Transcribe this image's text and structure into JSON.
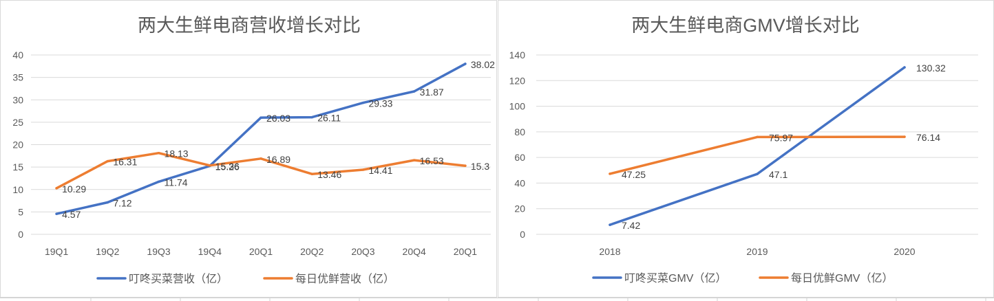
{
  "chart_data": [
    {
      "type": "line",
      "title": "两大生鲜电商营收增长对比",
      "categories": [
        "19Q1",
        "19Q2",
        "19Q3",
        "19Q4",
        "20Q1",
        "20Q2",
        "20Q3",
        "20Q4",
        "20Q1"
      ],
      "series": [
        {
          "name": "叮咚买菜营收（亿）",
          "color": "#4472C4",
          "values": [
            4.57,
            7.12,
            11.74,
            15.26,
            26.03,
            26.11,
            29.33,
            31.87,
            38.02
          ]
        },
        {
          "name": "每日优鲜营收（亿）",
          "color": "#ED7D31",
          "values": [
            10.29,
            16.31,
            18.13,
            15.36,
            16.89,
            13.46,
            14.41,
            16.53,
            15.3
          ]
        }
      ],
      "ylim": [
        0,
        40
      ],
      "yticks": [
        0,
        5,
        10,
        15,
        20,
        25,
        30,
        35,
        40
      ],
      "grid": true,
      "legend": "bottom",
      "data_labels": true
    },
    {
      "type": "line",
      "title": "两大生鲜电商GMV增长对比",
      "categories": [
        "2018",
        "2019",
        "2020"
      ],
      "series": [
        {
          "name": "叮咚买菜GMV（亿）",
          "color": "#4472C4",
          "values": [
            7.42,
            47.1,
            130.32
          ]
        },
        {
          "name": "每日优鲜GMV（亿）",
          "color": "#ED7D31",
          "values": [
            47.25,
            75.97,
            76.14
          ]
        }
      ],
      "ylim": [
        0,
        140
      ],
      "yticks": [
        0,
        20,
        40,
        60,
        80,
        100,
        120,
        140
      ],
      "grid": true,
      "legend": "bottom",
      "data_labels": true
    }
  ]
}
